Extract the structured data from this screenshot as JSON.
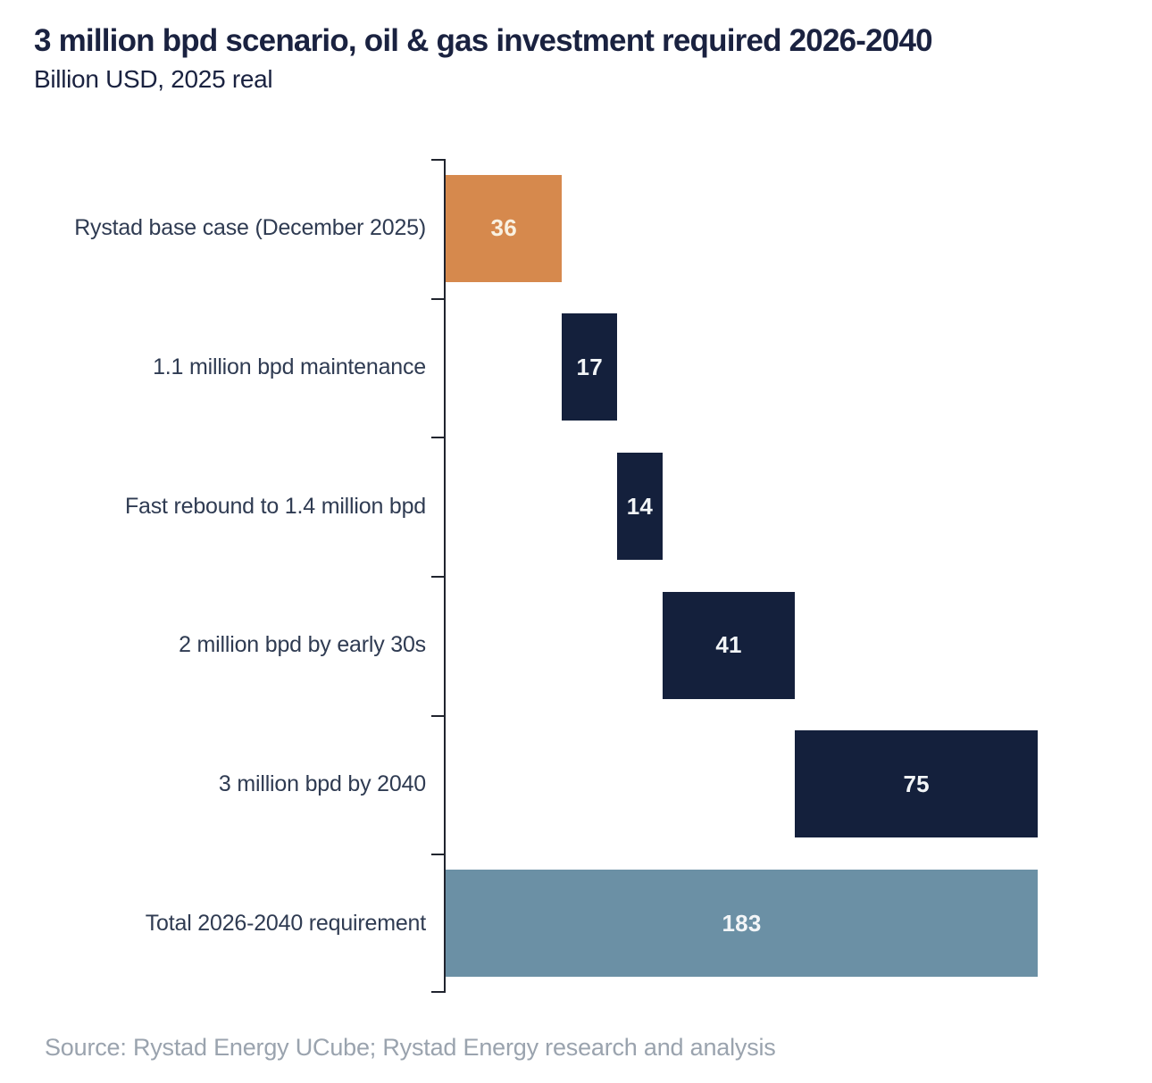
{
  "header": {
    "title": "3 million bpd scenario, oil & gas investment required 2026-2040",
    "subtitle": "Billion USD, 2025 real"
  },
  "footer": {
    "source": "Source: Rystad Energy UCube; Rystad Energy research and analysis"
  },
  "colors": {
    "accent_orange": "#D6894D",
    "navy": "#14203C",
    "steel_blue": "#6B90A5",
    "title_text": "#1A2240",
    "label_text": "#2F3B52",
    "source_text": "#9AA3AE",
    "axis": "#20242E",
    "value_on_orange": "#F9F1E1",
    "value_on_dark": "#F2F5F7"
  },
  "chart_data": {
    "type": "bar",
    "subtype": "horizontal-waterfall",
    "title": "3 million bpd scenario, oil & gas investment required 2026-2040",
    "subtitle": "Billion USD, 2025 real",
    "xlabel": "",
    "ylabel": "",
    "xlim": [
      0,
      183
    ],
    "grid": false,
    "legend": false,
    "categories": [
      "Rystad base case (December 2025)",
      "1.1 million bpd maintenance",
      "Fast rebound to 1.4 million bpd",
      "2 million bpd by early 30s",
      "3 million bpd by 2040",
      "Total 2026-2040 requirement"
    ],
    "values": [
      36,
      17,
      14,
      41,
      75,
      183
    ],
    "bars": [
      {
        "label": "Rystad base case (December 2025)",
        "value": 36,
        "start": 0,
        "end": 36,
        "role": "base",
        "color": "#D6894D",
        "value_color": "#F9F1E1"
      },
      {
        "label": "1.1 million bpd maintenance",
        "value": 17,
        "start": 36,
        "end": 53,
        "role": "increase",
        "color": "#14203C",
        "value_color": "#F2F5F7"
      },
      {
        "label": "Fast rebound to 1.4 million bpd",
        "value": 14,
        "start": 53,
        "end": 67,
        "role": "increase",
        "color": "#14203C",
        "value_color": "#F2F5F7"
      },
      {
        "label": "2 million bpd by early 30s",
        "value": 41,
        "start": 67,
        "end": 108,
        "role": "increase",
        "color": "#14203C",
        "value_color": "#F2F5F7"
      },
      {
        "label": "3 million bpd by 2040",
        "value": 75,
        "start": 108,
        "end": 183,
        "role": "increase",
        "color": "#14203C",
        "value_color": "#F2F5F7"
      },
      {
        "label": "Total 2026-2040 requirement",
        "value": 183,
        "start": 0,
        "end": 183,
        "role": "total",
        "color": "#6B90A5",
        "value_color": "#F2F5F7"
      }
    ]
  }
}
